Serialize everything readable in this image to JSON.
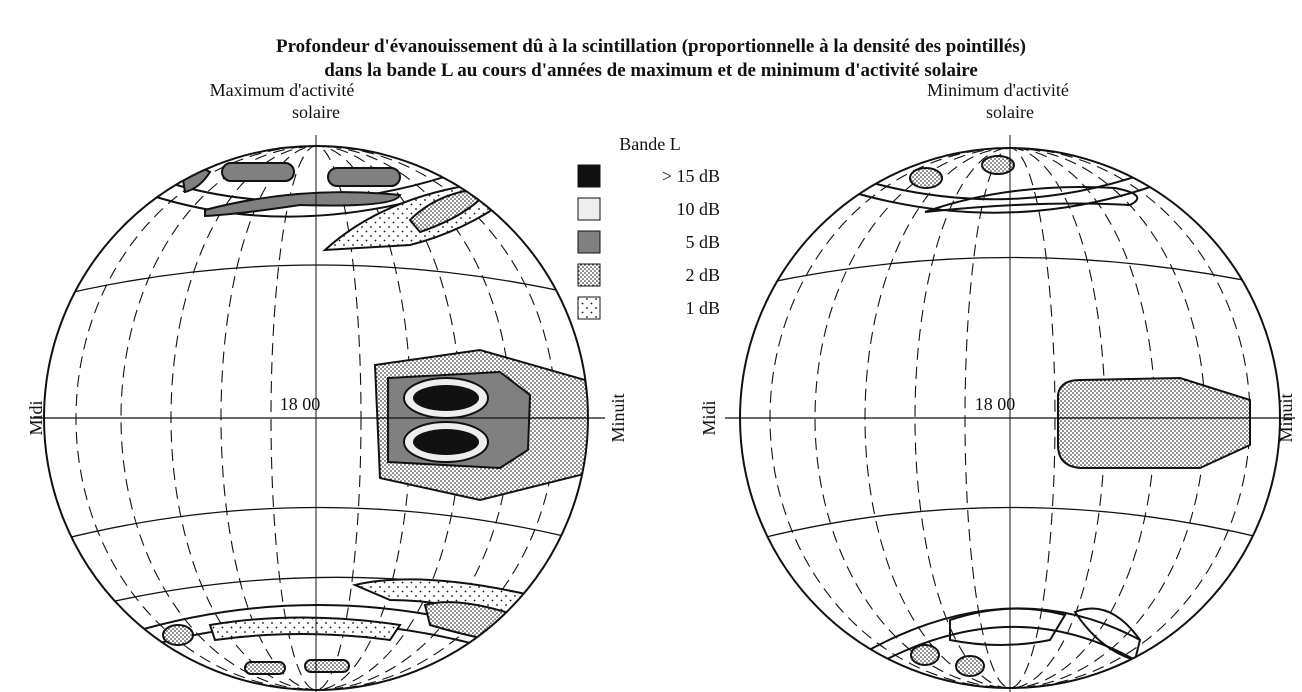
{
  "title": [
    "Profondeur d'évanouissement dû à la scintillation (proportionnelle à la densité des pointillés)",
    "dans la bande L au cours d'années de maximum et de minimum d'activité solaire"
  ],
  "globes": [
    {
      "label": [
        "Maximum d'activité",
        "solaire"
      ],
      "left": "Midi",
      "right": "Minuit",
      "center": "18 00"
    },
    {
      "label": [
        "Minimum d'activité",
        "solaire"
      ],
      "left": "Midi",
      "right": "Minuit",
      "center": "18 00"
    }
  ],
  "legend": {
    "title": "Bande L",
    "items": [
      "> 15 dB",
      "10 dB",
      "5 dB",
      "2 dB",
      "1 dB"
    ]
  }
}
